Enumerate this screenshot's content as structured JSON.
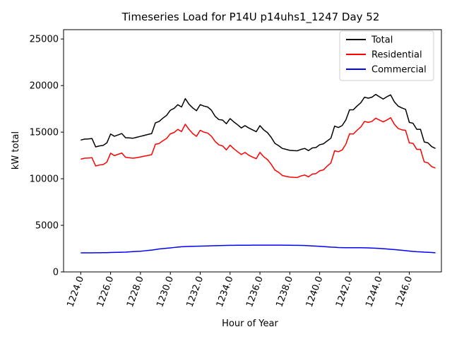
{
  "chart_data": {
    "type": "line",
    "title": "Timeseries Load for P14U p14uhs1_1247  Day 52",
    "xlabel": "Hour of Year",
    "ylabel": "kW total",
    "xlim": [
      1222.85,
      1248.15
    ],
    "ylim": [
      0,
      26000
    ],
    "xticks": [
      1224,
      1226,
      1228,
      1230,
      1232,
      1234,
      1236,
      1238,
      1240,
      1242,
      1244,
      1246
    ],
    "xtick_labels": [
      "1224.0",
      "1226.0",
      "1228.0",
      "1230.0",
      "1232.0",
      "1234.0",
      "1236.0",
      "1238.0",
      "1240.0",
      "1242.0",
      "1244.0",
      "1246.0"
    ],
    "yticks": [
      0,
      5000,
      10000,
      15000,
      20000,
      25000
    ],
    "ytick_labels": [
      "0",
      "5000",
      "10000",
      "15000",
      "20000",
      "25000"
    ],
    "legend_position": "top-right",
    "x": [
      1224.0,
      1224.25,
      1224.5,
      1224.75,
      1225.0,
      1225.25,
      1225.5,
      1225.75,
      1226.0,
      1226.25,
      1226.5,
      1226.75,
      1227.0,
      1227.25,
      1227.5,
      1227.75,
      1228.0,
      1228.25,
      1228.5,
      1228.75,
      1229.0,
      1229.25,
      1229.5,
      1229.75,
      1230.0,
      1230.25,
      1230.5,
      1230.75,
      1231.0,
      1231.25,
      1231.5,
      1231.75,
      1232.0,
      1232.25,
      1232.5,
      1232.75,
      1233.0,
      1233.25,
      1233.5,
      1233.75,
      1234.0,
      1234.25,
      1234.5,
      1234.75,
      1235.0,
      1235.25,
      1235.5,
      1235.75,
      1236.0,
      1236.25,
      1236.5,
      1236.75,
      1237.0,
      1237.25,
      1237.5,
      1237.75,
      1238.0,
      1238.25,
      1238.5,
      1238.75,
      1239.0,
      1239.25,
      1239.5,
      1239.75,
      1240.0,
      1240.25,
      1240.5,
      1240.75,
      1241.0,
      1241.25,
      1241.5,
      1241.75,
      1242.0,
      1242.25,
      1242.5,
      1242.75,
      1243.0,
      1243.25,
      1243.5,
      1243.75,
      1244.0,
      1244.25,
      1244.5,
      1244.75,
      1245.0,
      1245.25,
      1245.5,
      1245.75,
      1246.0,
      1246.25,
      1246.5,
      1246.75,
      1247.0,
      1247.25,
      1247.5,
      1247.75
    ],
    "series": [
      {
        "name": "Total",
        "color": "#000000",
        "values": [
          14150,
          14250,
          14270,
          14320,
          13420,
          13520,
          13580,
          13850,
          14800,
          14560,
          14700,
          14850,
          14400,
          14380,
          14350,
          14450,
          14550,
          14650,
          14750,
          14850,
          16000,
          16150,
          16500,
          16800,
          17350,
          17550,
          17950,
          17700,
          18600,
          18000,
          17600,
          17300,
          17950,
          17800,
          17700,
          17350,
          16700,
          16350,
          16300,
          15900,
          16450,
          16100,
          15800,
          15450,
          15700,
          15450,
          15250,
          15050,
          15700,
          15250,
          14950,
          14450,
          13800,
          13550,
          13250,
          13150,
          13050,
          13020,
          13000,
          13150,
          13250,
          13020,
          13300,
          13350,
          13650,
          13750,
          14050,
          14350,
          15650,
          15500,
          15700,
          16300,
          17400,
          17400,
          17800,
          18150,
          18750,
          18650,
          18750,
          19050,
          18800,
          18550,
          18800,
          19000,
          18250,
          17800,
          17600,
          17450,
          16050,
          15950,
          15300,
          15300,
          13950,
          13850,
          13450,
          13250
        ]
      },
      {
        "name": "Residential",
        "color": "#ff0000",
        "values": [
          12100,
          12200,
          12220,
          12260,
          11370,
          11470,
          11520,
          11780,
          12740,
          12480,
          12620,
          12760,
          12300,
          12250,
          12200,
          12260,
          12340,
          12420,
          12500,
          12580,
          13700,
          13780,
          14080,
          14330,
          14820,
          14960,
          15300,
          15060,
          15850,
          15300,
          14850,
          14550,
          15200,
          15000,
          14900,
          14560,
          14000,
          13640,
          13520,
          13100,
          13600,
          13220,
          12900,
          12600,
          12820,
          12530,
          12320,
          12150,
          12830,
          12360,
          12060,
          11560,
          10930,
          10690,
          10350,
          10250,
          10180,
          10150,
          10130,
          10300,
          10400,
          10200,
          10500,
          10550,
          10850,
          10950,
          11350,
          11700,
          13000,
          12900,
          13080,
          13700,
          14820,
          14800,
          15200,
          15550,
          16150,
          16050,
          16150,
          16500,
          16300,
          16100,
          16300,
          16550,
          15850,
          15400,
          15250,
          15200,
          13850,
          13800,
          13150,
          13150,
          11800,
          11700,
          11300,
          11150
        ]
      },
      {
        "name": "Commercial",
        "color": "#0000ff",
        "values": [
          2050,
          2050,
          2050,
          2050,
          2060,
          2060,
          2070,
          2070,
          2080,
          2090,
          2100,
          2110,
          2120,
          2150,
          2180,
          2200,
          2220,
          2260,
          2300,
          2340,
          2400,
          2460,
          2500,
          2540,
          2580,
          2620,
          2660,
          2700,
          2720,
          2740,
          2750,
          2760,
          2770,
          2780,
          2790,
          2800,
          2810,
          2820,
          2830,
          2840,
          2850,
          2855,
          2860,
          2860,
          2865,
          2865,
          2870,
          2870,
          2870,
          2870,
          2870,
          2870,
          2870,
          2870,
          2870,
          2865,
          2860,
          2855,
          2850,
          2840,
          2830,
          2810,
          2790,
          2770,
          2750,
          2720,
          2690,
          2660,
          2640,
          2620,
          2610,
          2600,
          2600,
          2600,
          2600,
          2600,
          2590,
          2580,
          2560,
          2540,
          2520,
          2490,
          2460,
          2430,
          2400,
          2360,
          2320,
          2280,
          2240,
          2200,
          2170,
          2150,
          2120,
          2100,
          2080,
          2060
        ]
      }
    ]
  }
}
